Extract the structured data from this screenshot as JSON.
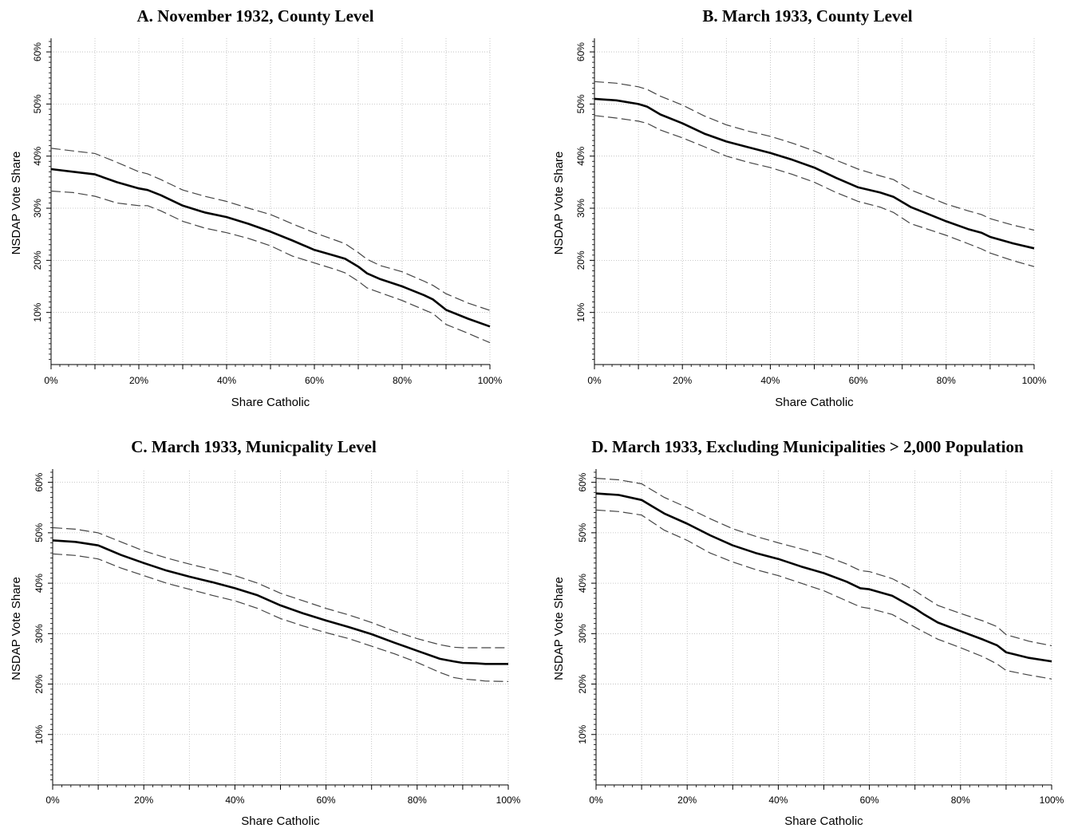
{
  "chart_data": [
    {
      "type": "line",
      "title": "A. November 1932, County Level",
      "xlabel": "Share Catholic",
      "ylabel": "NSDAP Vote Share",
      "x_ticks": [
        "0%",
        "20%",
        "40%",
        "60%",
        "80%",
        "100%"
      ],
      "y_ticks": [
        "10%",
        "20%",
        "30%",
        "40%",
        "50%",
        "60%"
      ],
      "xlim": [
        0,
        100
      ],
      "ylim": [
        0,
        62
      ],
      "grid": true,
      "x": [
        0,
        5,
        10,
        15,
        20,
        22,
        25,
        30,
        35,
        40,
        45,
        50,
        55,
        60,
        65,
        67,
        70,
        72,
        75,
        80,
        85,
        87,
        90,
        95,
        100
      ],
      "series": [
        {
          "role": "estimate",
          "values": [
            37.5,
            37.0,
            36.5,
            35.0,
            33.8,
            33.5,
            32.5,
            30.5,
            29.2,
            28.3,
            27.0,
            25.5,
            23.8,
            22.0,
            20.8,
            20.3,
            18.8,
            17.5,
            16.4,
            15.0,
            13.3,
            12.5,
            10.5,
            8.8,
            7.3
          ]
        },
        {
          "role": "upper",
          "values": [
            41.5,
            41.0,
            40.5,
            38.8,
            37.0,
            36.6,
            35.5,
            33.5,
            32.3,
            31.3,
            30.0,
            28.8,
            27.0,
            25.3,
            23.8,
            23.2,
            21.5,
            20.2,
            19.0,
            17.8,
            16.0,
            15.2,
            13.6,
            11.8,
            10.4
          ]
        },
        {
          "role": "lower",
          "values": [
            33.3,
            33.0,
            32.3,
            31.0,
            30.5,
            30.5,
            29.5,
            27.5,
            26.2,
            25.3,
            24.2,
            22.8,
            20.8,
            19.5,
            18.2,
            17.6,
            16.0,
            14.7,
            13.8,
            12.3,
            10.5,
            9.8,
            7.7,
            6.0,
            4.2
          ]
        }
      ]
    },
    {
      "type": "line",
      "title": "B. March 1933, County Level",
      "xlabel": "Share Catholic",
      "ylabel": "NSDAP Vote Share",
      "x_ticks": [
        "0%",
        "20%",
        "40%",
        "60%",
        "80%",
        "100%"
      ],
      "y_ticks": [
        "10%",
        "20%",
        "30%",
        "40%",
        "50%",
        "60%"
      ],
      "xlim": [
        0,
        100
      ],
      "ylim": [
        0,
        62
      ],
      "grid": true,
      "x": [
        0,
        5,
        10,
        12,
        15,
        20,
        25,
        30,
        35,
        40,
        45,
        50,
        55,
        60,
        65,
        68,
        72,
        75,
        80,
        85,
        88,
        90,
        95,
        100
      ],
      "series": [
        {
          "role": "estimate",
          "values": [
            51.0,
            50.7,
            50.0,
            49.5,
            48.0,
            46.3,
            44.3,
            42.8,
            41.7,
            40.6,
            39.3,
            37.8,
            35.8,
            34.0,
            33.0,
            32.2,
            30.2,
            29.2,
            27.5,
            26.0,
            25.3,
            24.5,
            23.3,
            22.3
          ]
        },
        {
          "role": "upper",
          "values": [
            54.3,
            54.0,
            53.3,
            52.8,
            51.5,
            49.8,
            47.7,
            46.0,
            44.8,
            43.8,
            42.5,
            41.0,
            39.2,
            37.5,
            36.2,
            35.5,
            33.5,
            32.5,
            30.8,
            29.5,
            28.8,
            28.0,
            26.8,
            25.8
          ]
        },
        {
          "role": "lower",
          "values": [
            47.8,
            47.3,
            46.7,
            46.3,
            45.0,
            43.5,
            41.8,
            40.0,
            38.8,
            37.8,
            36.5,
            35.0,
            33.0,
            31.3,
            30.2,
            29.2,
            27.0,
            26.2,
            24.8,
            23.2,
            22.2,
            21.4,
            20.0,
            18.8
          ]
        }
      ]
    },
    {
      "type": "line",
      "title": "C. March 1933, Municpality Level",
      "xlabel": "Share Catholic",
      "ylabel": "NSDAP Vote Share",
      "x_ticks": [
        "0%",
        "20%",
        "40%",
        "60%",
        "80%",
        "100%"
      ],
      "y_ticks": [
        "10%",
        "20%",
        "30%",
        "40%",
        "50%",
        "60%"
      ],
      "xlim": [
        0,
        100
      ],
      "ylim": [
        0,
        62
      ],
      "grid": true,
      "x": [
        0,
        5,
        10,
        15,
        20,
        25,
        30,
        35,
        40,
        45,
        50,
        55,
        60,
        65,
        70,
        75,
        80,
        85,
        88,
        90,
        93,
        95,
        100
      ],
      "series": [
        {
          "role": "estimate",
          "values": [
            48.5,
            48.2,
            47.5,
            45.6,
            44.0,
            42.5,
            41.3,
            40.2,
            39.0,
            37.6,
            35.6,
            34.0,
            32.6,
            31.3,
            29.9,
            28.2,
            26.6,
            25.0,
            24.5,
            24.2,
            24.1,
            24.0,
            24.0
          ]
        },
        {
          "role": "upper",
          "values": [
            51.0,
            50.7,
            50.0,
            48.2,
            46.4,
            45.0,
            43.8,
            42.7,
            41.5,
            40.0,
            38.0,
            36.5,
            35.0,
            33.7,
            32.2,
            30.5,
            29.0,
            27.8,
            27.3,
            27.2,
            27.2,
            27.2,
            27.2
          ]
        },
        {
          "role": "lower",
          "values": [
            45.8,
            45.5,
            44.8,
            43.0,
            41.5,
            40.0,
            38.8,
            37.6,
            36.5,
            35.0,
            33.0,
            31.5,
            30.2,
            29.0,
            27.5,
            26.0,
            24.3,
            22.3,
            21.3,
            21.0,
            20.8,
            20.6,
            20.5
          ]
        }
      ]
    },
    {
      "type": "line",
      "title": "D. March 1933, Excluding Municipalities > 2,000 Population",
      "xlabel": "Share Catholic",
      "ylabel": "NSDAP Vote Share",
      "x_ticks": [
        "0%",
        "20%",
        "40%",
        "60%",
        "80%",
        "100%"
      ],
      "y_ticks": [
        "10%",
        "20%",
        "30%",
        "40%",
        "50%",
        "60%"
      ],
      "xlim": [
        0,
        100
      ],
      "ylim": [
        0,
        62
      ],
      "grid": true,
      "x": [
        0,
        5,
        10,
        15,
        20,
        25,
        30,
        35,
        40,
        45,
        50,
        55,
        58,
        60,
        65,
        68,
        70,
        72,
        75,
        80,
        85,
        88,
        90,
        95,
        100
      ],
      "series": [
        {
          "role": "estimate",
          "values": [
            57.8,
            57.5,
            56.5,
            53.8,
            51.8,
            49.5,
            47.5,
            46.0,
            44.8,
            43.3,
            42.0,
            40.3,
            39.0,
            38.8,
            37.5,
            36.0,
            35.0,
            33.8,
            32.2,
            30.5,
            28.8,
            27.7,
            26.3,
            25.2,
            24.5
          ]
        },
        {
          "role": "upper",
          "values": [
            60.8,
            60.5,
            59.7,
            57.0,
            55.0,
            52.8,
            50.8,
            49.3,
            48.0,
            46.8,
            45.5,
            43.8,
            42.5,
            42.3,
            40.9,
            39.5,
            38.5,
            37.3,
            35.6,
            34.0,
            32.5,
            31.4,
            29.8,
            28.5,
            27.6
          ]
        },
        {
          "role": "lower",
          "values": [
            54.5,
            54.2,
            53.5,
            50.5,
            48.5,
            46.0,
            44.2,
            42.7,
            41.5,
            40.0,
            38.5,
            36.5,
            35.3,
            35.0,
            33.8,
            32.3,
            31.3,
            30.3,
            28.9,
            27.2,
            25.4,
            24.0,
            22.7,
            21.8,
            21.0
          ]
        }
      ]
    }
  ]
}
